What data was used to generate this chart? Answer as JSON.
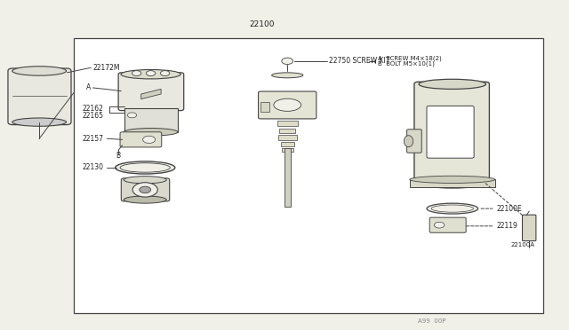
{
  "bg_color": "#f0efe8",
  "line_color": "#444444",
  "text_color": "#222222",
  "part_number_main": "22100",
  "part_22172M": "22172M",
  "part_22162": "22162",
  "part_22165": "22165",
  "part_22157": "22157",
  "part_22130": "22130",
  "part_22750": "22750 SCREW KIT",
  "part_22100E": "22100E",
  "part_22119": "22119",
  "part_22100A": "22100A",
  "screw_label_A": "A  SCREW M4×18(2)",
  "screw_label_B": "B  BOLT M5×10(1)",
  "label_A": "A",
  "label_B": "B",
  "footer": "A99  00P"
}
